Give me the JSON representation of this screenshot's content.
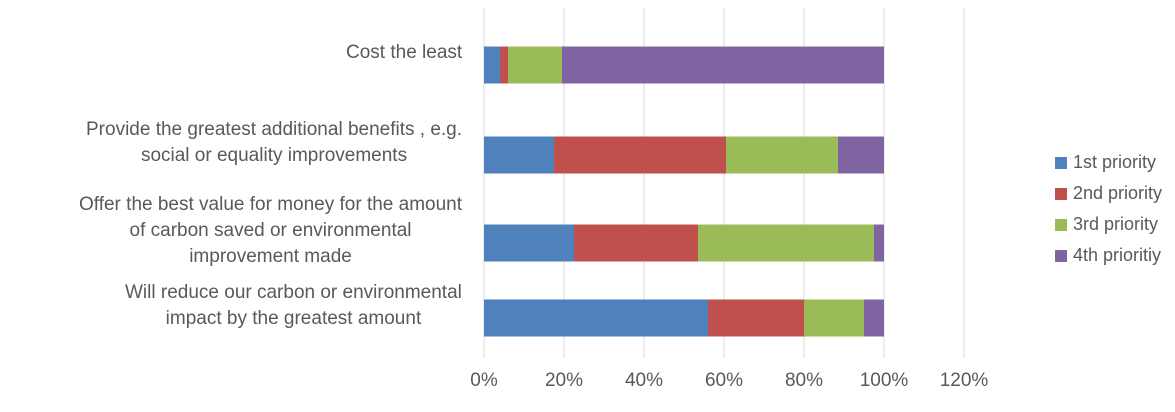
{
  "chart_data": {
    "type": "bar",
    "orientation": "horizontal",
    "stacked": true,
    "categories": [
      "Cost the least",
      "Provide the greatest additional benefits , e.g. social or equality improvements",
      "Offer the best value for money for the amount of carbon saved or environmental improvement made",
      "Will reduce our carbon or environmental impact by the greatest amount"
    ],
    "category_lines": [
      [
        "Cost the least"
      ],
      [
        "Provide the greatest additional benefits , e.g.",
        "social or equality improvements"
      ],
      [
        "Offer the best value for money for the amount",
        "of carbon saved or environmental",
        "improvement made"
      ],
      [
        "Will reduce our carbon or environmental",
        "impact by the greatest amount"
      ]
    ],
    "series": [
      {
        "name": "1st priority",
        "color": "#4F81BD",
        "values": [
          4,
          17.5,
          22.5,
          56
        ]
      },
      {
        "name": "2nd priority",
        "color": "#C0504D",
        "values": [
          2,
          43,
          31,
          24
        ]
      },
      {
        "name": "3rd priority",
        "color": "#9BBB59",
        "values": [
          13.5,
          28,
          44,
          15
        ]
      },
      {
        "name": "4th prioritiy",
        "color": "#8064A2",
        "values": [
          80.5,
          11.5,
          2.5,
          5
        ]
      }
    ],
    "xaxis": {
      "min": 0,
      "max": 120,
      "step": 20,
      "tick_labels": [
        "0%",
        "20%",
        "40%",
        "60%",
        "80%",
        "100%",
        "120%"
      ]
    },
    "grid": true,
    "legend": "right"
  }
}
